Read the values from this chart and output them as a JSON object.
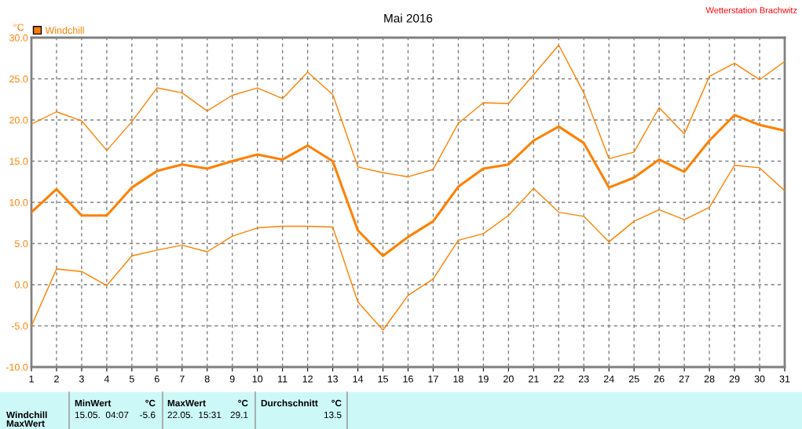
{
  "chart_data": {
    "type": "line",
    "title": "Mai 2016",
    "ylabel": "°C",
    "x": [
      1,
      2,
      3,
      4,
      5,
      6,
      7,
      8,
      9,
      10,
      11,
      12,
      13,
      14,
      15,
      16,
      17,
      18,
      19,
      20,
      21,
      22,
      23,
      24,
      25,
      26,
      27,
      28,
      29,
      30,
      31
    ],
    "series": [
      {
        "name": "Windchill",
        "color": "#ff8000",
        "values": [
          8.8,
          11.6,
          8.4,
          8.4,
          11.8,
          13.8,
          14.6,
          14.1,
          15.0,
          15.8,
          15.2,
          16.9,
          15.0,
          6.6,
          3.5,
          5.8,
          7.7,
          11.9,
          14.1,
          14.6,
          17.5,
          19.2,
          17.2,
          11.8,
          13.0,
          15.2,
          13.7,
          17.5,
          20.6,
          19.4,
          18.7
        ]
      },
      {
        "color": "#ff8000",
        "values": [
          19.5,
          21.0,
          19.9,
          16.3,
          19.8,
          23.9,
          23.3,
          21.1,
          23.0,
          23.9,
          22.6,
          25.8,
          23.1,
          14.3,
          13.6,
          13.1,
          14.0,
          19.6,
          22.1,
          22.0,
          25.5,
          29.1,
          23.3,
          15.3,
          16.1,
          21.5,
          18.3,
          25.3,
          26.9,
          24.9,
          27.1
        ]
      },
      {
        "color": "#ff8000",
        "values": [
          -5.0,
          1.9,
          1.6,
          -0.1,
          3.5,
          4.2,
          4.8,
          4.0,
          5.9,
          6.9,
          7.1,
          7.1,
          7.0,
          -2.1,
          -5.5,
          -1.3,
          0.7,
          5.4,
          6.2,
          8.4,
          11.7,
          8.8,
          8.3,
          5.2,
          7.7,
          9.1,
          7.9,
          9.4,
          14.5,
          14.2,
          11.4
        ]
      }
    ],
    "xlim": [
      1,
      31
    ],
    "xticks": [
      1,
      2,
      3,
      4,
      5,
      6,
      7,
      8,
      9,
      10,
      11,
      12,
      13,
      14,
      15,
      16,
      17,
      18,
      19,
      20,
      21,
      22,
      23,
      24,
      25,
      26,
      27,
      28,
      29,
      30,
      31
    ],
    "ylim": [
      -10,
      30
    ],
    "yticks": [
      {
        "value": -10,
        "label": "-10.0"
      },
      {
        "value": -5,
        "label": "-5.0"
      },
      {
        "value": 0,
        "label": "0.0"
      },
      {
        "value": 5,
        "label": "5.0"
      },
      {
        "value": 10,
        "label": "10.0"
      },
      {
        "value": 15,
        "label": "15.0"
      },
      {
        "value": 20,
        "label": "20.0"
      },
      {
        "value": 25,
        "label": "25.0"
      },
      {
        "value": 30,
        "label": "30.0"
      }
    ],
    "grid": true,
    "legend": "top left",
    "marker": "none",
    "line_style": "solid",
    "annotations": [
      "Wetterstation Brachwitz",
      "MinWert",
      "°C",
      "MaxWert",
      "°C",
      "Durchschnitt",
      "°C",
      "Windchill",
      "15.05.  04:07",
      "-5.6",
      "22.05.  15:31",
      "29.1",
      "13.5",
      "MaxWert"
    ]
  }
}
